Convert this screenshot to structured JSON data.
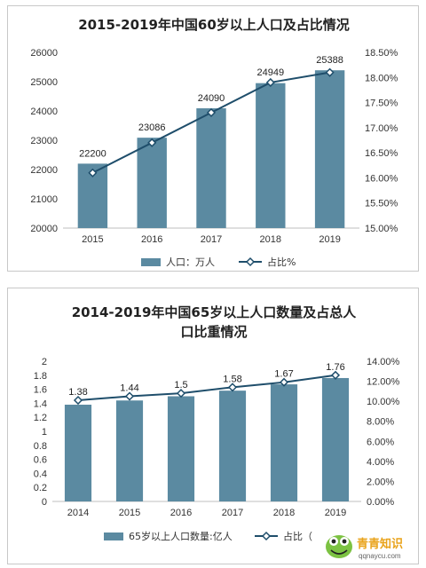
{
  "colors": {
    "bar": "#5b8aa1",
    "line": "#1f4e6b",
    "axis": "#bfbfbf",
    "text": "#333333"
  },
  "chart_data": [
    {
      "type": "bar",
      "title": "2015-2019年中国60岁以上人口及占比情况",
      "categories": [
        "2015",
        "2016",
        "2017",
        "2018",
        "2019"
      ],
      "series": [
        {
          "name": "人口：万人",
          "type": "bar",
          "values": [
            22200,
            23086,
            24090,
            24949,
            25388
          ],
          "axis": "left"
        },
        {
          "name": "占比%",
          "type": "line",
          "values": [
            16.1,
            16.7,
            17.3,
            17.9,
            18.1
          ],
          "axis": "right"
        }
      ],
      "y_left": {
        "ylim": [
          20000,
          26000
        ],
        "ticks": [
          "20000",
          "21000",
          "22000",
          "23000",
          "24000",
          "25000",
          "26000"
        ]
      },
      "y_right": {
        "ylim": [
          15.0,
          18.5
        ],
        "ticks": [
          "15.00%",
          "15.50%",
          "16.00%",
          "16.50%",
          "17.00%",
          "17.50%",
          "18.00%",
          "18.50%"
        ]
      },
      "data_labels": [
        "22200",
        "23086",
        "24090",
        "24949",
        "25388"
      ],
      "grid": false,
      "legend": "bottom"
    },
    {
      "type": "bar",
      "title": "2014-2019年中国65岁以上人口数量及占总人口比重情况",
      "title_lines": [
        "2014-2019年中国65岁以上人口数量及占总人",
        "口比重情况"
      ],
      "categories": [
        "2014",
        "2015",
        "2016",
        "2017",
        "2018",
        "2019"
      ],
      "series": [
        {
          "name": "65岁以上人口数量:亿人",
          "type": "bar",
          "values": [
            1.38,
            1.44,
            1.5,
            1.58,
            1.67,
            1.76
          ],
          "axis": "left"
        },
        {
          "name": "占比（",
          "type": "line",
          "values": [
            10.1,
            10.5,
            10.8,
            11.4,
            11.9,
            12.6
          ],
          "axis": "right"
        }
      ],
      "y_left": {
        "ylim": [
          0,
          2
        ],
        "ticks": [
          "0",
          "0.2",
          "0.4",
          "0.6",
          "0.8",
          "1",
          "1.2",
          "1.4",
          "1.6",
          "1.8",
          "2"
        ]
      },
      "y_right": {
        "ylim": [
          0,
          14
        ],
        "ticks": [
          "0.00%",
          "2.00%",
          "4.00%",
          "6.00%",
          "8.00%",
          "10.00%",
          "12.00%",
          "14.00%"
        ]
      },
      "data_labels": [
        "1.38",
        "1.44",
        "1.5",
        "1.58",
        "1.67",
        "1.76"
      ],
      "grid": false,
      "legend": "bottom"
    }
  ],
  "watermark": {
    "text_cn": "青青知识",
    "text_url": "qqnaycu.com"
  }
}
